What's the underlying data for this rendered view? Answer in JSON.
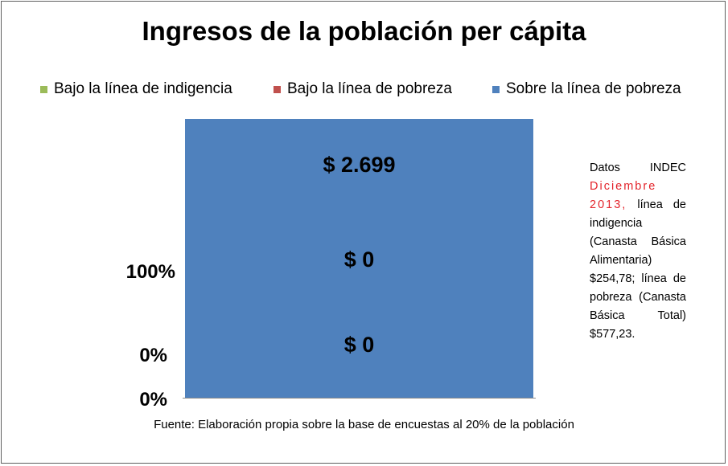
{
  "chart_data": {
    "type": "bar",
    "stacked": true,
    "stack_mode": "percent",
    "title": "Ingresos de la población per cápita",
    "categories": [
      ""
    ],
    "series": [
      {
        "name": "Bajo la línea de indigencia",
        "color": "#9BBB59",
        "values": [
          0
        ],
        "label": "$ 0"
      },
      {
        "name": "Bajo la línea de pobreza",
        "color": "#C0504D",
        "values": [
          0
        ],
        "label": "$ 0"
      },
      {
        "name": "Sobre la línea de pobreza",
        "color": "#4F81BD",
        "values": [
          2699
        ],
        "label": "$ 2.699"
      }
    ],
    "y_tick_labels": [
      "0%",
      "0%",
      "100%"
    ],
    "legend_position": "top",
    "grid": false
  },
  "note": {
    "prefix": "Datos INDEC",
    "highlight": "Diciembre 2013,",
    "text": "línea de indigencia (Canasta Básica Alimentaria) $254,78; línea de pobreza (Canasta Básica Total) $577,23."
  },
  "source": "Fuente: Elaboración propia sobre la base de encuestas al 20% de la población"
}
